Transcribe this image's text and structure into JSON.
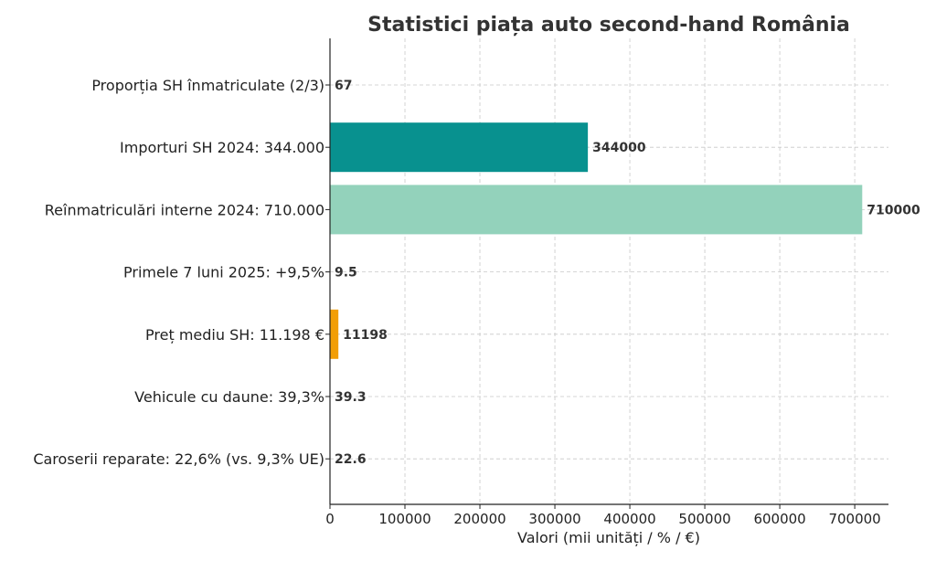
{
  "chart_data": {
    "type": "bar",
    "orientation": "horizontal",
    "title": "Statistici piața auto second-hand România",
    "xlabel": "Valori (mii unități / % / €)",
    "ylabel": "",
    "xlim": [
      0,
      745000
    ],
    "xticks": [
      0,
      100000,
      200000,
      300000,
      400000,
      500000,
      600000,
      700000
    ],
    "grid": true,
    "categories": [
      "Proporția SH înmatriculate (2/3)",
      "Importuri SH 2024: 344.000",
      "Reînmatriculări interne 2024: 710.000",
      "Primele 7 luni 2025: +9,5%",
      "Preț mediu SH: 11.198 €",
      "Vehicule cu daune: 39,3%",
      "Caroserii reparate: 22,6% (vs. 9,3% UE)"
    ],
    "values": [
      67,
      344000,
      710000,
      9.5,
      11198,
      39.3,
      22.6
    ],
    "value_labels": [
      "67",
      "344000",
      "710000",
      "9.5",
      "11198",
      "39.3",
      "22.6"
    ],
    "colors": [
      "#2ca25f",
      "#08918f",
      "#93d2bb",
      "#2b8cbe",
      "#f29e05",
      "#e34a33",
      "#756bb1"
    ]
  }
}
